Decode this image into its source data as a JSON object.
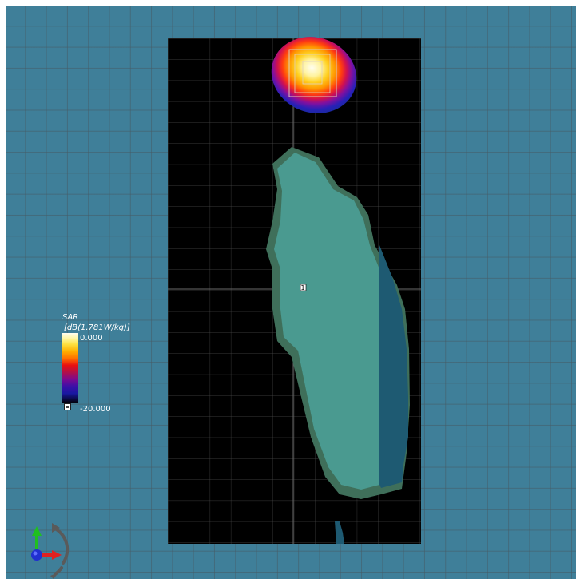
{
  "legend": {
    "title": "SAR",
    "unit": "[dB(1.781W/kg)]",
    "max_label": "0.000",
    "min_label": "-20.000",
    "colors": [
      "#fffef2",
      "#fff6a0",
      "#ffe040",
      "#ffb000",
      "#ff7000",
      "#e81010",
      "#b0104a",
      "#7a0a90",
      "#3a10a8",
      "#1818a0",
      "#000000"
    ]
  },
  "scene": {
    "background_color": "#3f7f99",
    "phantom_color": "#4a9a90",
    "phantom_shade_color": "#1e5a72",
    "plane_color": "#000000",
    "hotspot_label": "1"
  },
  "axes_widget": {
    "x_color": "#e02020",
    "y_color": "#20c020",
    "z_color": "#2030d0",
    "rotate_icon": "rotate-arrows-icon"
  }
}
